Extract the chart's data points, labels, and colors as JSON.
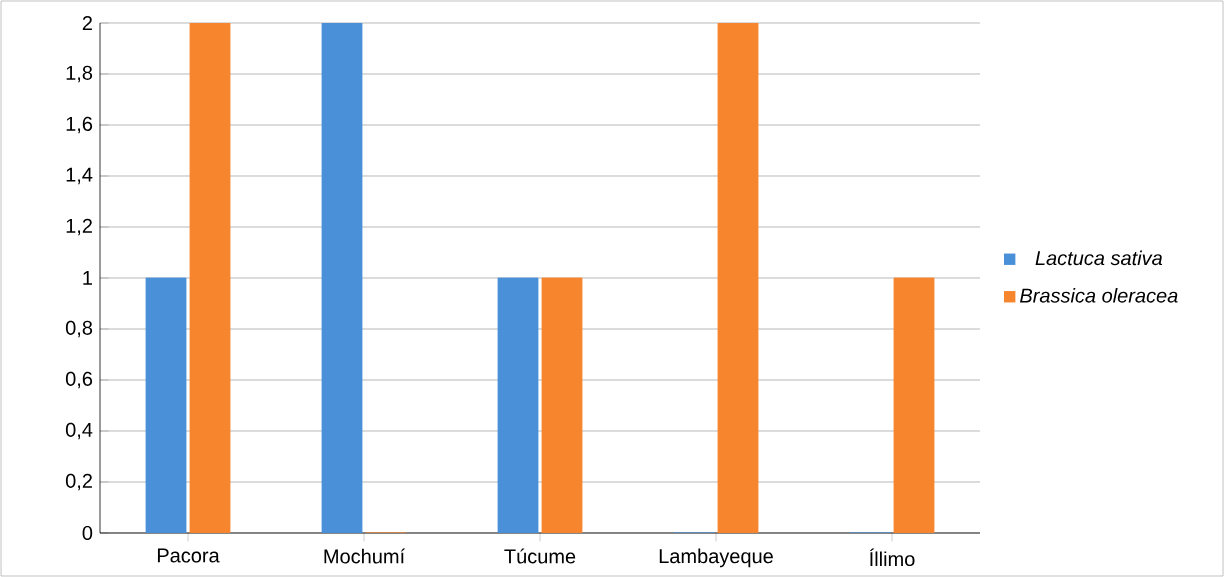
{
  "chart_data": {
    "type": "bar",
    "categories": [
      "Pacora",
      "Mochumí",
      "Túcume",
      "Lambayeque",
      "Íllimo"
    ],
    "series": [
      {
        "name": "Lactuca sativa",
        "color": "#4a90d9",
        "values": [
          1,
          2,
          1,
          0,
          0
        ]
      },
      {
        "name": "Brassica oleracea",
        "color": "#f7852e",
        "values": [
          2,
          0,
          1,
          2,
          1
        ]
      }
    ],
    "ylim": [
      0,
      2
    ],
    "yticks": [
      0,
      {
        "value": 0.2,
        "label": "0,2"
      },
      {
        "value": 0.4,
        "label": "0,4"
      },
      {
        "value": 0.6,
        "label": "0,6"
      },
      {
        "value": 0.8,
        "label": "0,8"
      },
      1,
      {
        "value": 1.2,
        "label": "1,2"
      },
      {
        "value": 1.4,
        "label": "1,4"
      },
      {
        "value": 1.6,
        "label": "1,6"
      },
      {
        "value": 1.8,
        "label": "1,8"
      },
      2
    ],
    "grid": true,
    "legend": "right"
  }
}
